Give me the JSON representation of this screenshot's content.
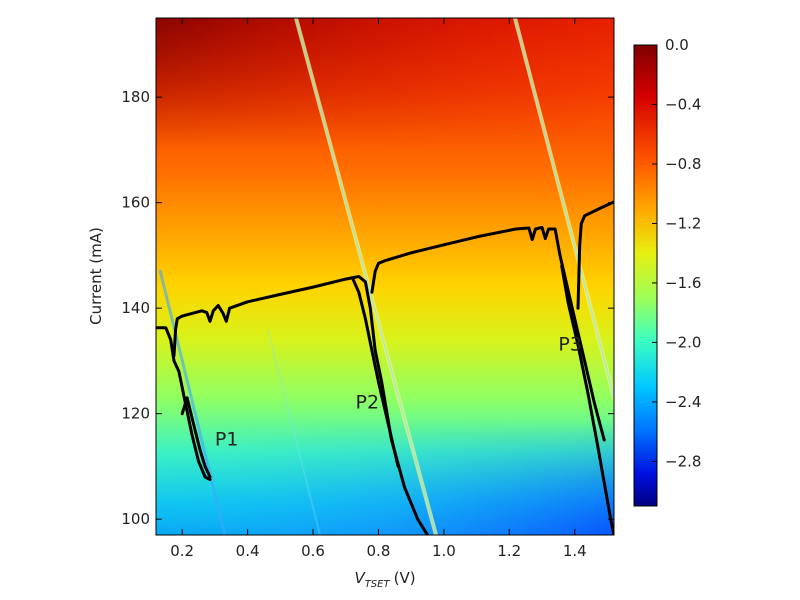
{
  "chart_data": {
    "type": "heatmap",
    "title": "",
    "xlabel": {
      "symbol": "V",
      "subscript": "TSET",
      "unit": "(V)"
    },
    "ylabel": "Current (mA)",
    "xlim": [
      0.12,
      1.52
    ],
    "ylim": [
      97,
      195
    ],
    "xticks": [
      0.2,
      0.4,
      0.6,
      0.8,
      1.0,
      1.2,
      1.4
    ],
    "xtick_labels": [
      "0.2",
      "0.4",
      "0.6",
      "0.8",
      "1.0",
      "1.2",
      "1.4"
    ],
    "yticks": [
      100,
      120,
      140,
      160,
      180
    ],
    "ytick_labels": [
      "100",
      "120",
      "140",
      "160",
      "180"
    ],
    "colorbar": {
      "range": [
        -3.1,
        0.0
      ],
      "ticks": [
        0.0,
        -0.4,
        -0.8,
        -1.2,
        -1.6,
        -2.0,
        -2.4,
        -2.8
      ],
      "tick_labels": [
        "0.0",
        "−0.4",
        "−0.8",
        "−1.2",
        "−1.6",
        "−2.0",
        "−2.4",
        "−2.8"
      ],
      "colormap": "jet"
    },
    "overlay_curve": {
      "name": "",
      "color": "#000000",
      "x": [
        0.12,
        0.15,
        0.17,
        0.18,
        0.19,
        0.21,
        0.24,
        0.26,
        0.27,
        0.28,
        0.285,
        0.29
      ],
      "y": [
        136.5,
        136.5,
        133,
        130,
        128,
        123,
        116,
        111,
        109,
        107,
        108,
        110
      ]
    },
    "annotations": [
      {
        "text": "P1",
        "x": 0.3,
        "y": 114
      },
      {
        "text": "P2",
        "x": 0.73,
        "y": 121
      },
      {
        "text": "P3",
        "x": 1.35,
        "y": 132
      }
    ]
  }
}
